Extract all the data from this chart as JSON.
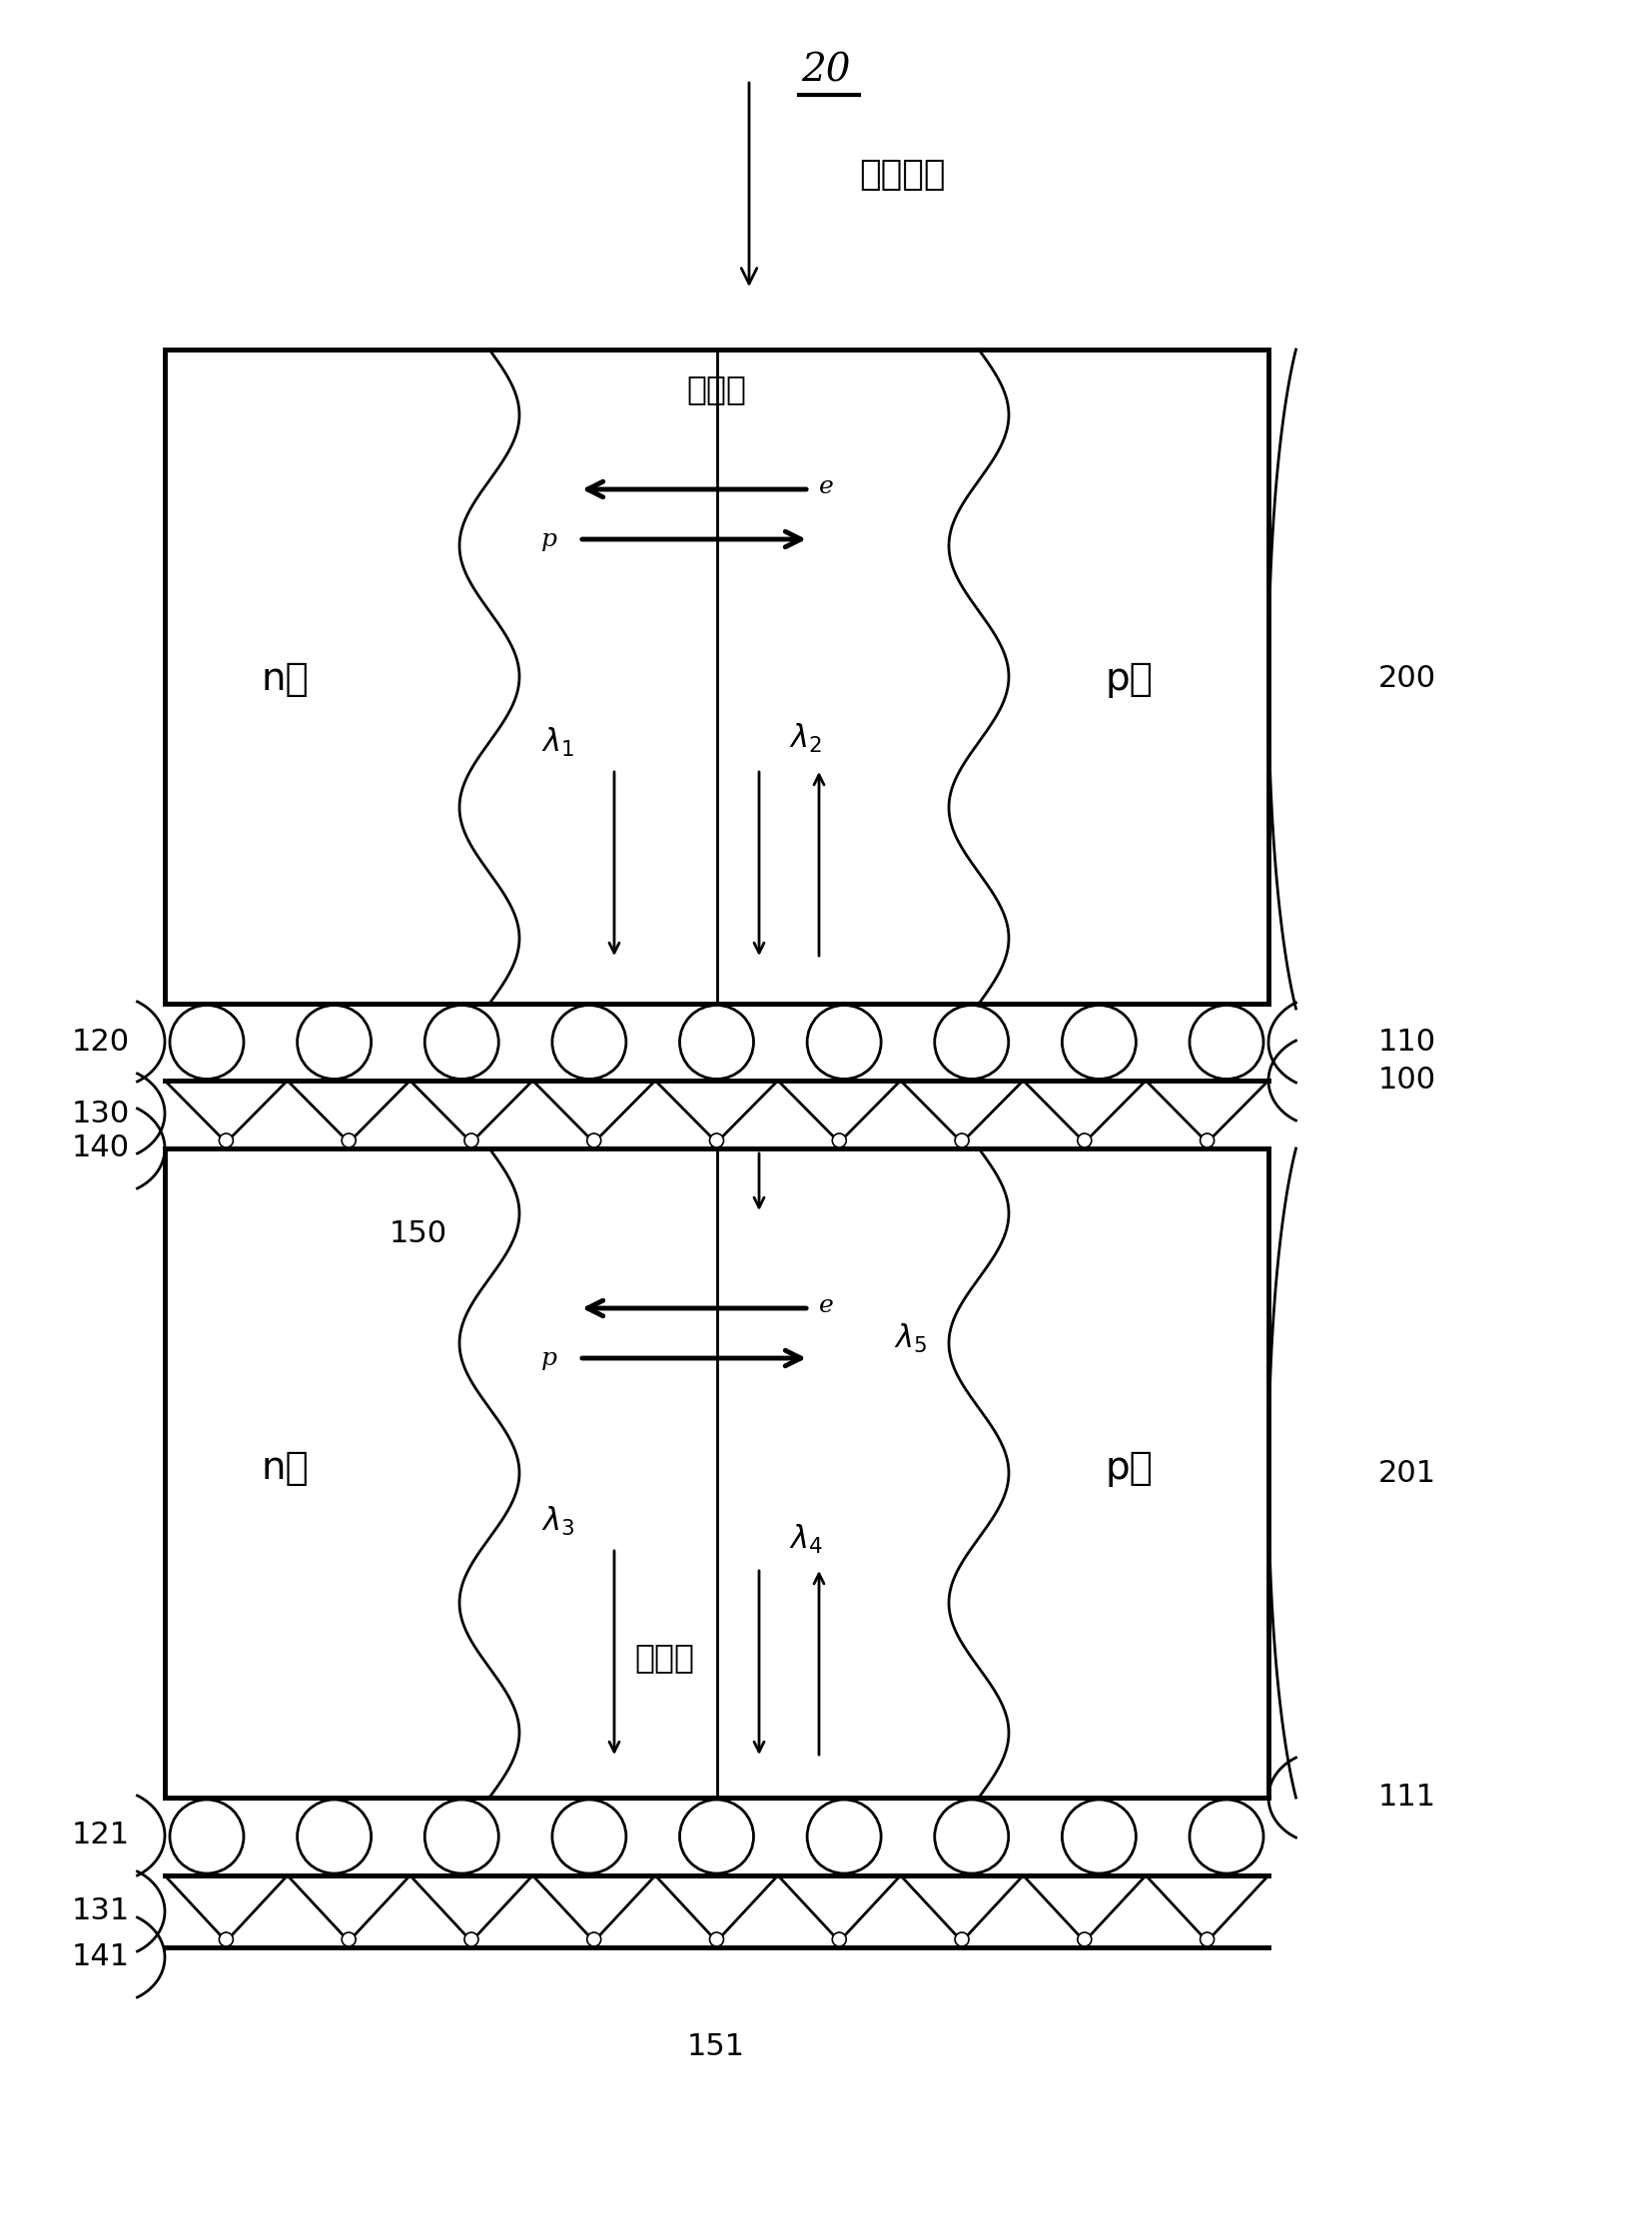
{
  "fig_width": 16.54,
  "fig_height": 22.29,
  "bg_color": "#ffffff",
  "title_label": "20",
  "sunlight_label": "入射阳光",
  "depletion_label1": "耗尽区",
  "depletion_label2": "耗尽区",
  "n_label": "n区",
  "p_label": "p区",
  "n_label2": "n区",
  "p_label2": "p区",
  "label_200": "200",
  "label_201": "201",
  "label_110": "110",
  "label_111": "111",
  "label_100": "100",
  "label_120": "120",
  "label_130": "130",
  "label_140": "140",
  "label_150": "150",
  "label_121": "121",
  "label_131": "131",
  "label_141": "141",
  "label_151": "151",
  "e_label": "e",
  "p_label_arrow": "p",
  "lambda1": "$\\lambda_1$",
  "lambda2": "$\\lambda_2$",
  "lambda3": "$\\lambda_3$",
  "lambda4": "$\\lambda_4$",
  "lambda5": "$\\lambda_5$"
}
